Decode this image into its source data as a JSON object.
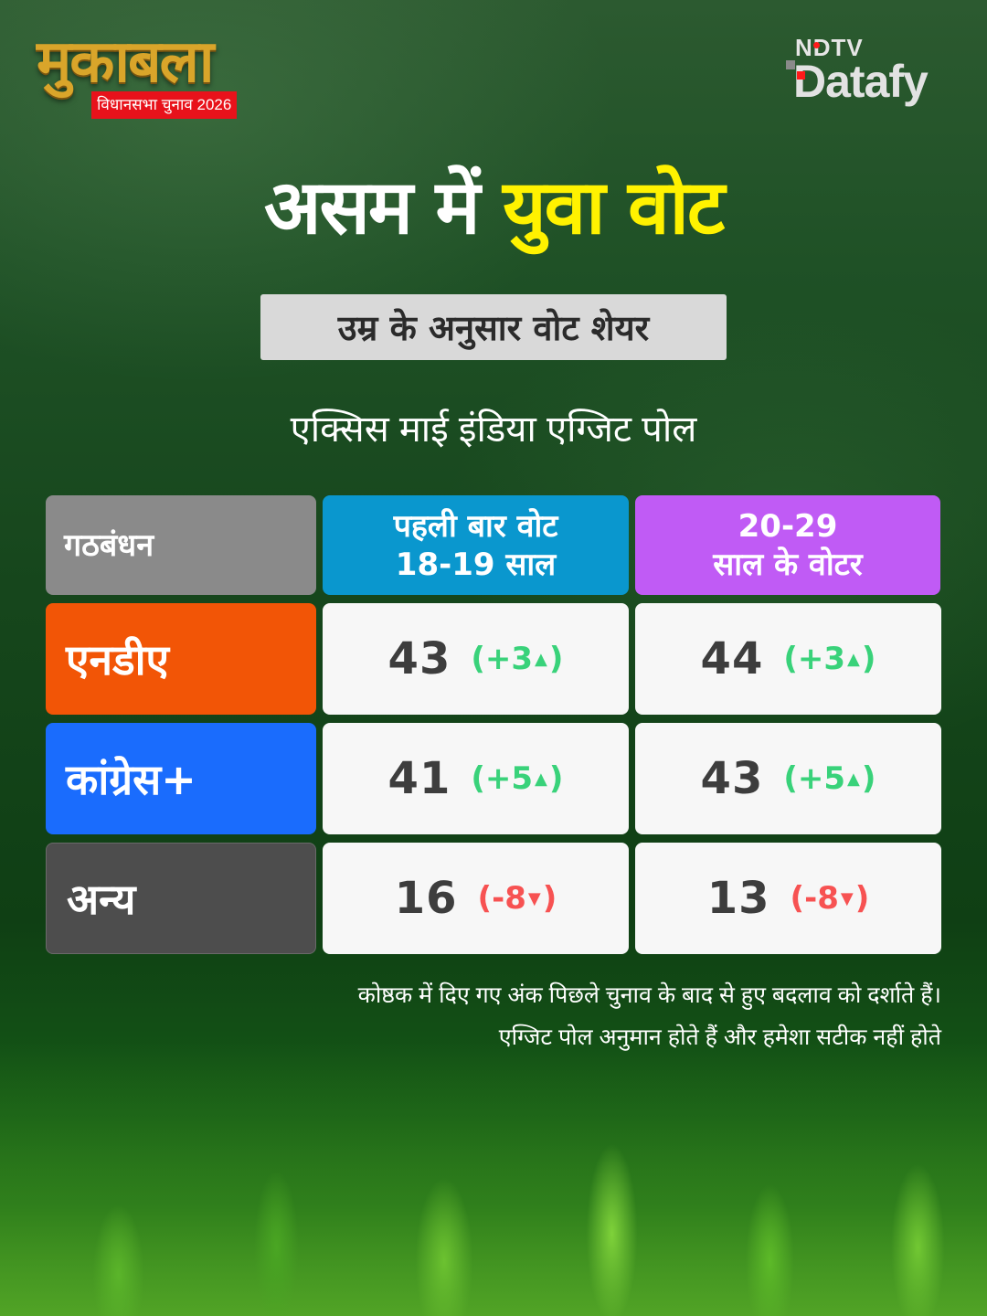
{
  "branding": {
    "show_logo": "मुकाबला",
    "show_subtitle": "विधानसभा चुनाव 2026",
    "publisher_top": "NDTV",
    "publisher_bottom": "Datafy"
  },
  "header": {
    "title_part1": "असम में",
    "title_part2": "युवा वोट",
    "subtitle": "उम्र के अनुसार वोट शेयर",
    "source": "एक्सिस माई इंडिया एग्जिट पोल"
  },
  "colors": {
    "title_highlight": "#fff200",
    "alliance_header": "#8a8a8a",
    "first_time_header": "#0a97ce",
    "young_header": "#c05bf5",
    "nda": "#f25506",
    "congress": "#1a6cfd",
    "others": "#4d4d4d",
    "positive_change": "#39d27a",
    "negative_change": "#f75252"
  },
  "table": {
    "headers": {
      "alliance": "गठबंधन",
      "first_time_line1": "पहली बार वोट",
      "first_time_line2": "18-19 साल",
      "young_line1": "20-29",
      "young_line2": "साल के वोटर"
    },
    "rows": [
      {
        "party": "एनडीए",
        "first_time": {
          "value": "43",
          "change": "+3",
          "arrow": "▲"
        },
        "young": {
          "value": "44",
          "change": "+3",
          "arrow": "▲"
        }
      },
      {
        "party": "कांग्रेस+",
        "first_time": {
          "value": "41",
          "change": "+5",
          "arrow": "▲"
        },
        "young": {
          "value": "43",
          "change": "+5",
          "arrow": "▲"
        }
      },
      {
        "party": "अन्य",
        "first_time": {
          "value": "16",
          "change": "-8",
          "arrow": "▼"
        },
        "young": {
          "value": "13",
          "change": "-8",
          "arrow": "▼"
        }
      }
    ]
  },
  "footnotes": {
    "line1": "कोष्ठक में दिए गए अंक पिछले चुनाव के बाद से हुए बदलाव को दर्शाते हैं।",
    "line2": "एग्जिट पोल अनुमान होते हैं और हमेशा सटीक नहीं होते"
  },
  "chart_data": {
    "type": "table",
    "title": "असम में युवा वोट",
    "subtitle": "उम्र के अनुसार वोट शेयर",
    "source": "एक्सिस माई इंडिया एग्जिट पोल",
    "columns": [
      "गठबंधन",
      "पहली बार वोट 18-19 साल",
      "20-29 साल के वोटर"
    ],
    "categories": [
      "एनडीए",
      "कांग्रेस+",
      "अन्य"
    ],
    "series": [
      {
        "name": "पहली बार वोट 18-19 साल",
        "values": [
          43,
          41,
          16
        ],
        "change": [
          3,
          5,
          -8
        ]
      },
      {
        "name": "20-29 साल के वोटर",
        "values": [
          44,
          43,
          13
        ],
        "change": [
          3,
          5,
          -8
        ]
      }
    ],
    "unit": "%",
    "notes": [
      "कोष्ठक में दिए गए अंक पिछले चुनाव के बाद से हुए बदलाव को दर्शाते हैं।",
      "एग्जिट पोल अनुमान होते हैं और हमेशा सटीक नहीं होते"
    ]
  }
}
